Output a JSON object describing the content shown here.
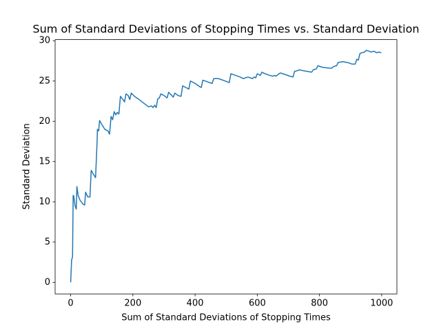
{
  "chart_data": {
    "type": "line",
    "title": "Sum of Standard Deviations of Stopping Times vs. Standard Deviation",
    "x_label": "Sum of Standard Deviations of Stopping Times",
    "y_label": "Standard Deviation",
    "x": [
      0,
      3,
      5,
      6,
      8,
      10,
      14,
      18,
      20,
      24,
      30,
      40,
      45,
      48,
      55,
      62,
      66,
      72,
      80,
      85,
      86,
      90,
      93,
      100,
      110,
      120,
      125,
      130,
      135,
      140,
      145,
      150,
      155,
      160,
      170,
      173,
      178,
      185,
      190,
      195,
      205,
      220,
      240,
      250,
      260,
      265,
      270,
      275,
      280,
      285,
      290,
      300,
      310,
      315,
      325,
      330,
      335,
      345,
      355,
      360,
      370,
      380,
      385,
      400,
      415,
      420,
      425,
      440,
      455,
      460,
      475,
      490,
      510,
      515,
      530,
      545,
      555,
      570,
      585,
      590,
      595,
      600,
      605,
      610,
      615,
      625,
      640,
      650,
      655,
      660,
      670,
      675,
      690,
      705,
      715,
      720,
      730,
      735,
      745,
      760,
      775,
      780,
      790,
      795,
      810,
      830,
      840,
      845,
      855,
      860,
      875,
      890,
      905,
      915,
      920,
      925,
      930,
      935,
      945,
      950,
      960,
      965,
      975,
      985,
      990,
      999
    ],
    "series": [
      {
        "color": "#1f77b4",
        "values": [
          0,
          2.8,
          3,
          3.2,
          10.8,
          10.7,
          9.5,
          9.1,
          11.9,
          10.8,
          10.2,
          9.7,
          9.6,
          11.2,
          10.6,
          10.6,
          13.9,
          13.5,
          13,
          17.5,
          19,
          18.8,
          20.1,
          19.6,
          19,
          18.8,
          18.4,
          20.6,
          20.2,
          21.2,
          20.8,
          21.1,
          20.9,
          23.1,
          22.6,
          22.4,
          23.4,
          23.2,
          22.7,
          23.5,
          23.1,
          22.7,
          22.1,
          21.8,
          21.9,
          21.7,
          22,
          21.7,
          22.8,
          22.9,
          23.4,
          23.2,
          22.9,
          23.6,
          23.2,
          23,
          23.5,
          23.2,
          23.1,
          24.4,
          24.2,
          24,
          25,
          24.7,
          24.3,
          24.2,
          25.1,
          24.9,
          24.7,
          25.3,
          25.3,
          25.1,
          24.8,
          25.9,
          25.7,
          25.5,
          25.3,
          25.5,
          25.3,
          25.5,
          25.4,
          25.9,
          25.8,
          25.7,
          26.1,
          25.9,
          25.7,
          25.6,
          25.7,
          25.6,
          25.9,
          26,
          25.8,
          25.6,
          25.5,
          26.2,
          26.3,
          26.4,
          26.3,
          26.2,
          26.1,
          26.4,
          26.5,
          26.9,
          26.7,
          26.6,
          26.6,
          26.8,
          26.9,
          27.3,
          27.4,
          27.3,
          27.1,
          27.1,
          27.7,
          27.6,
          28.4,
          28.5,
          28.6,
          28.8,
          28.7,
          28.6,
          28.7,
          28.5,
          28.6,
          28.5
        ]
      }
    ],
    "xlim": [
      -50,
      1049
    ],
    "ylim": [
      -1.44,
      30.14
    ],
    "xticks": [
      0,
      200,
      400,
      600,
      800,
      1000
    ],
    "yticks": [
      0,
      5,
      10,
      15,
      20,
      25,
      30
    ]
  }
}
